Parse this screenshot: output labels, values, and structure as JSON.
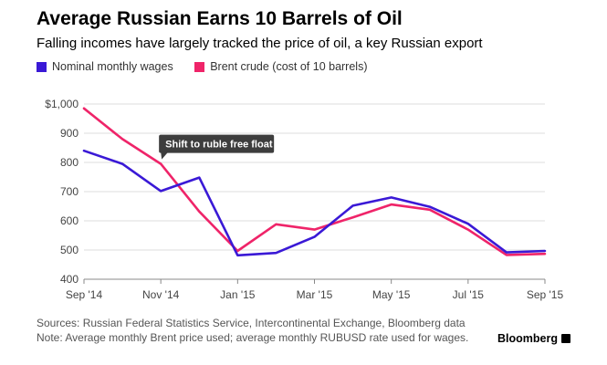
{
  "header": {
    "title": "Average Russian Earns 10 Barrels of Oil",
    "subtitle": "Falling incomes have largely tracked the price of oil, a key Russian export"
  },
  "legend": {
    "nominal_label": "Nominal monthly wages",
    "brent_label": "Brent crude (cost of 10 barrels)"
  },
  "annotation": {
    "text": "Shift to ruble free float"
  },
  "footer": {
    "source": "Sources: Russian Federal Statistics Service, Intercontinental Exchange, Bloomberg data",
    "note": "Note: Average monthly Brent price used; average monthly RUBUSD rate used for wages.",
    "brand": "Bloomberg"
  },
  "colors": {
    "nominal": "#3a19d6",
    "brent": "#ef2469",
    "annotation_bg": "#3d3d3d",
    "grid": "#dcdcdc"
  },
  "chart_data": {
    "type": "line",
    "x": [
      "Sep '14",
      "Oct '14",
      "Nov '14",
      "Dec '14",
      "Jan '15",
      "Feb '15",
      "Mar '15",
      "Apr '15",
      "May '15",
      "Jun '15",
      "Jul '15",
      "Aug '15",
      "Sep '15"
    ],
    "x_ticks": [
      "Sep '14",
      "Nov '14",
      "Jan '15",
      "Mar '15",
      "May '15",
      "Jul '15",
      "Sep '15"
    ],
    "y_ticks": [
      "$1,000",
      "900",
      "800",
      "700",
      "600",
      "500",
      "400"
    ],
    "ylim": [
      400,
      1000
    ],
    "series": [
      {
        "name": "Nominal monthly wages",
        "values": [
          840,
          795,
          702,
          748,
          482,
          490,
          545,
          652,
          680,
          648,
          590,
          492,
          497
        ]
      },
      {
        "name": "Brent crude (cost of 10 barrels)",
        "values": [
          985,
          880,
          795,
          632,
          497,
          588,
          570,
          612,
          656,
          638,
          570,
          483,
          487
        ]
      }
    ],
    "annotation_index": 2,
    "grid": true
  }
}
